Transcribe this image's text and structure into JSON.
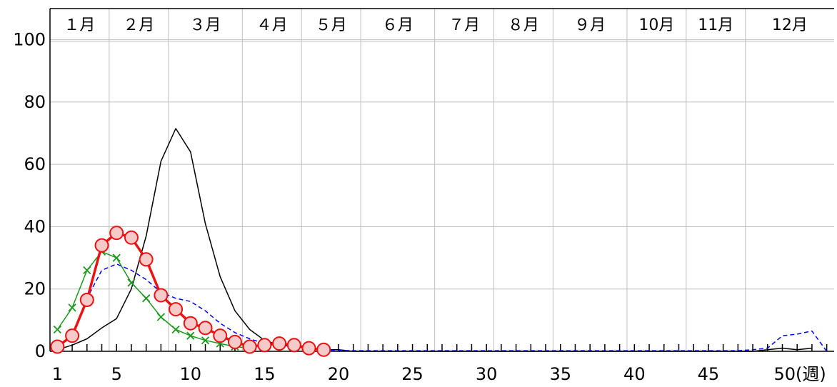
{
  "chart_data": {
    "type": "line",
    "month_labels": [
      "１月",
      "２月",
      "３月",
      "４月",
      "５月",
      "６月",
      "７月",
      "８月",
      "９月",
      "10月",
      "11月",
      "12月"
    ],
    "month_start_weeks": [
      1,
      5,
      9,
      14,
      18,
      22,
      27,
      31,
      35,
      40,
      44,
      48
    ],
    "x_tick_labels": [
      "1",
      "5",
      "10",
      "15",
      "20",
      "25",
      "30",
      "35",
      "40",
      "45",
      "50(週)"
    ],
    "x_tick_values": [
      1,
      5,
      10,
      15,
      20,
      25,
      30,
      35,
      40,
      45,
      50
    ],
    "y_tick_labels": [
      "0",
      "20",
      "40",
      "60",
      "80",
      "100"
    ],
    "y_tick_values": [
      0,
      20,
      40,
      60,
      80,
      100
    ],
    "xlim": [
      0.5,
      53.5
    ],
    "ylim": [
      0,
      110
    ],
    "grid": true,
    "series": [
      {
        "color": "#000000",
        "style": "solid",
        "marker": "none",
        "x": [
          1,
          2,
          3,
          4,
          5,
          6,
          7,
          8,
          9,
          10,
          11,
          12,
          13,
          14,
          15,
          16,
          17,
          18,
          19,
          20,
          21,
          22,
          23,
          24,
          25,
          26,
          27,
          28,
          29,
          30,
          31,
          32,
          33,
          34,
          35,
          36,
          37,
          38,
          39,
          40,
          41,
          42,
          43,
          44,
          45,
          46,
          47,
          48,
          49,
          50,
          51,
          52
        ],
        "values": [
          0.5,
          2,
          4,
          7.5,
          10.5,
          20,
          37,
          61,
          71.5,
          64,
          41,
          24,
          13,
          7,
          3.5,
          2,
          1.5,
          1,
          0.5,
          0.5,
          0,
          0,
          0,
          0,
          0,
          0,
          0,
          0,
          0,
          0,
          0,
          0,
          0,
          0,
          0,
          0,
          0,
          0,
          0,
          0,
          0,
          0,
          0,
          0,
          0,
          0,
          0,
          0,
          0.5,
          1,
          0.5,
          1
        ]
      },
      {
        "color": "#0000ff",
        "style": "dashed",
        "marker": "none",
        "x": [
          1,
          2,
          3,
          4,
          5,
          6,
          7,
          8,
          9,
          10,
          11,
          12,
          13,
          14,
          15,
          16,
          17,
          18,
          19,
          20,
          21,
          22,
          23,
          24,
          25,
          26,
          27,
          28,
          29,
          30,
          31,
          32,
          33,
          34,
          35,
          36,
          37,
          38,
          39,
          40,
          41,
          42,
          43,
          44,
          45,
          46,
          47,
          48,
          49,
          50,
          51,
          52,
          53
        ],
        "values": [
          1.5,
          5,
          17,
          26,
          28,
          26,
          23,
          19,
          17,
          16,
          13,
          9,
          6,
          4,
          2.5,
          2,
          1.5,
          1,
          0.5,
          0.3,
          0.2,
          0.2,
          0.2,
          0.2,
          0.2,
          0.2,
          0.2,
          0.2,
          0.2,
          0.2,
          0.2,
          0.2,
          0.2,
          0.2,
          0.2,
          0.2,
          0.2,
          0.2,
          0.2,
          0.2,
          0.2,
          0.2,
          0.2,
          0.2,
          0.2,
          0.2,
          0.2,
          0.5,
          1,
          5,
          5.5,
          6.5,
          0
        ]
      },
      {
        "color": "#1a9a1a",
        "style": "solid",
        "marker": "x",
        "x": [
          1,
          2,
          3,
          4,
          5,
          6,
          7,
          8,
          9,
          10,
          11,
          12,
          13,
          14
        ],
        "values": [
          7,
          14,
          26,
          32,
          30,
          22,
          17,
          11,
          7,
          5,
          3.5,
          2.5,
          1.5,
          1
        ]
      },
      {
        "color": "#ee1111",
        "style": "bold",
        "marker": "circle",
        "x": [
          1,
          2,
          3,
          4,
          5,
          6,
          7,
          8,
          9,
          10,
          11,
          12,
          13,
          14,
          15,
          16,
          17,
          18,
          19
        ],
        "values": [
          1.5,
          5,
          16.5,
          34,
          38,
          36.5,
          29.5,
          18,
          13.5,
          9,
          7.5,
          5,
          3,
          1.5,
          2,
          2.5,
          2,
          1,
          0.5
        ]
      }
    ]
  }
}
